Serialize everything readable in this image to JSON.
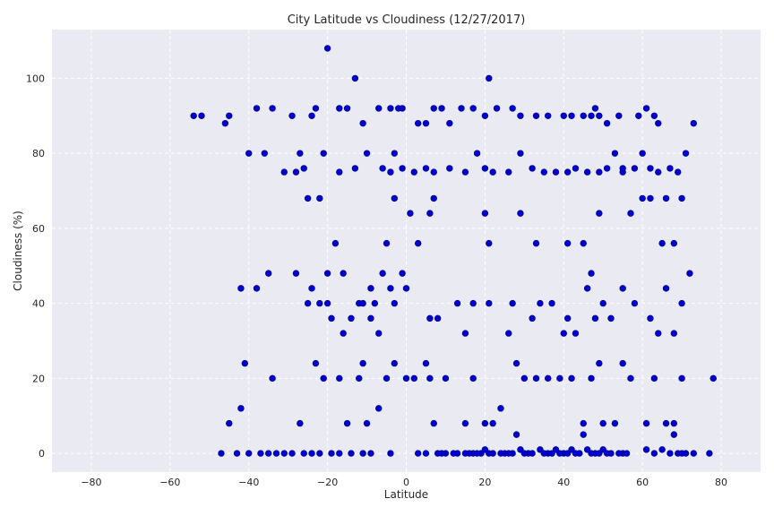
{
  "chart_data": {
    "type": "scatter",
    "title": "City Latitude vs Cloudiness (12/27/2017)",
    "xlabel": "Latitude",
    "ylabel": "Cloudiness (%)",
    "xlim": [
      -90,
      90
    ],
    "ylim": [
      -5,
      113
    ],
    "xticks": [
      -80,
      -60,
      -40,
      -20,
      0,
      20,
      40,
      60,
      80
    ],
    "yticks": [
      0,
      20,
      40,
      60,
      80,
      100
    ],
    "xtick_labels": [
      "−80",
      "−60",
      "−40",
      "−20",
      "0",
      "20",
      "40",
      "60",
      "80"
    ],
    "ytick_labels": [
      "0",
      "20",
      "40",
      "60",
      "80",
      "100"
    ],
    "grid": true,
    "style": {
      "plot_background": "#EAEAF2",
      "grid_color": "#FFFFFF",
      "marker_color": "#0000CD",
      "marker_edge": "#00008B"
    },
    "points": [
      [
        -54,
        90
      ],
      [
        -52,
        90
      ],
      [
        -46,
        88
      ],
      [
        -45,
        90
      ],
      [
        -38,
        92
      ],
      [
        -34,
        92
      ],
      [
        -29,
        90
      ],
      [
        -28,
        75
      ],
      [
        -26,
        76
      ],
      [
        -24,
        90
      ],
      [
        -23,
        92
      ],
      [
        -20,
        108
      ],
      [
        -17,
        92
      ],
      [
        -15,
        92
      ],
      [
        -13,
        100
      ],
      [
        -11,
        88
      ],
      [
        -7,
        92
      ],
      [
        -4,
        92
      ],
      [
        -2,
        92
      ],
      [
        -1,
        92
      ],
      [
        3,
        88
      ],
      [
        5,
        88
      ],
      [
        7,
        92
      ],
      [
        9,
        92
      ],
      [
        11,
        88
      ],
      [
        14,
        92
      ],
      [
        17,
        92
      ],
      [
        20,
        90
      ],
      [
        21,
        100
      ],
      [
        23,
        92
      ],
      [
        27,
        92
      ],
      [
        29,
        90
      ],
      [
        33,
        90
      ],
      [
        36,
        90
      ],
      [
        40,
        90
      ],
      [
        42,
        90
      ],
      [
        45,
        90
      ],
      [
        47,
        90
      ],
      [
        48,
        92
      ],
      [
        49,
        90
      ],
      [
        51,
        88
      ],
      [
        54,
        90
      ],
      [
        59,
        90
      ],
      [
        61,
        92
      ],
      [
        63,
        90
      ],
      [
        64,
        88
      ],
      [
        73,
        88
      ],
      [
        -40,
        80
      ],
      [
        -36,
        80
      ],
      [
        -31,
        75
      ],
      [
        -27,
        80
      ],
      [
        -21,
        80
      ],
      [
        -17,
        75
      ],
      [
        -13,
        76
      ],
      [
        -10,
        80
      ],
      [
        -6,
        76
      ],
      [
        -4,
        75
      ],
      [
        -3,
        80
      ],
      [
        -1,
        76
      ],
      [
        2,
        75
      ],
      [
        5,
        76
      ],
      [
        7,
        75
      ],
      [
        11,
        76
      ],
      [
        15,
        75
      ],
      [
        18,
        80
      ],
      [
        20,
        76
      ],
      [
        22,
        75
      ],
      [
        26,
        75
      ],
      [
        29,
        80
      ],
      [
        32,
        76
      ],
      [
        35,
        75
      ],
      [
        38,
        75
      ],
      [
        41,
        75
      ],
      [
        43,
        76
      ],
      [
        46,
        75
      ],
      [
        49,
        75
      ],
      [
        51,
        76
      ],
      [
        53,
        80
      ],
      [
        55,
        75
      ],
      [
        58,
        76
      ],
      [
        60,
        80
      ],
      [
        62,
        76
      ],
      [
        64,
        75
      ],
      [
        67,
        76
      ],
      [
        69,
        75
      ],
      [
        71,
        80
      ],
      [
        -25,
        68
      ],
      [
        -22,
        68
      ],
      [
        -20,
        48
      ],
      [
        -18,
        56
      ],
      [
        -16,
        48
      ],
      [
        -14,
        36
      ],
      [
        -12,
        40
      ],
      [
        -9,
        44
      ],
      [
        -6,
        48
      ],
      [
        -5,
        56
      ],
      [
        -3,
        68
      ],
      [
        -1,
        48
      ],
      [
        1,
        64
      ],
      [
        3,
        56
      ],
      [
        6,
        64
      ],
      [
        7,
        68
      ],
      [
        20,
        64
      ],
      [
        21,
        56
      ],
      [
        29,
        64
      ],
      [
        33,
        56
      ],
      [
        41,
        56
      ],
      [
        45,
        56
      ],
      [
        47,
        48
      ],
      [
        49,
        64
      ],
      [
        55,
        76
      ],
      [
        57,
        64
      ],
      [
        60,
        68
      ],
      [
        62,
        68
      ],
      [
        65,
        56
      ],
      [
        66,
        68
      ],
      [
        68,
        56
      ],
      [
        70,
        68
      ],
      [
        72,
        48
      ],
      [
        -42,
        44
      ],
      [
        -38,
        44
      ],
      [
        -35,
        48
      ],
      [
        -28,
        48
      ],
      [
        -25,
        40
      ],
      [
        -24,
        44
      ],
      [
        -22,
        40
      ],
      [
        -20,
        40
      ],
      [
        -19,
        36
      ],
      [
        -16,
        32
      ],
      [
        -11,
        40
      ],
      [
        -9,
        36
      ],
      [
        -8,
        40
      ],
      [
        -7,
        32
      ],
      [
        -4,
        44
      ],
      [
        -3,
        40
      ],
      [
        0,
        44
      ],
      [
        6,
        36
      ],
      [
        8,
        36
      ],
      [
        13,
        40
      ],
      [
        15,
        32
      ],
      [
        17,
        40
      ],
      [
        21,
        40
      ],
      [
        26,
        32
      ],
      [
        27,
        40
      ],
      [
        32,
        36
      ],
      [
        34,
        40
      ],
      [
        37,
        40
      ],
      [
        40,
        32
      ],
      [
        41,
        36
      ],
      [
        43,
        32
      ],
      [
        46,
        44
      ],
      [
        48,
        36
      ],
      [
        50,
        40
      ],
      [
        52,
        36
      ],
      [
        55,
        44
      ],
      [
        58,
        40
      ],
      [
        62,
        36
      ],
      [
        64,
        32
      ],
      [
        66,
        44
      ],
      [
        68,
        32
      ],
      [
        70,
        40
      ],
      [
        -41,
        24
      ],
      [
        -42,
        12
      ],
      [
        -34,
        20
      ],
      [
        -27,
        8
      ],
      [
        -23,
        24
      ],
      [
        -21,
        20
      ],
      [
        -17,
        20
      ],
      [
        -15,
        8
      ],
      [
        -12,
        20
      ],
      [
        -11,
        24
      ],
      [
        -10,
        8
      ],
      [
        -7,
        12
      ],
      [
        -5,
        20
      ],
      [
        -3,
        24
      ],
      [
        0,
        20
      ],
      [
        2,
        20
      ],
      [
        5,
        24
      ],
      [
        6,
        20
      ],
      [
        7,
        8
      ],
      [
        10,
        20
      ],
      [
        15,
        8
      ],
      [
        17,
        20
      ],
      [
        20,
        8
      ],
      [
        22,
        8
      ],
      [
        24,
        12
      ],
      [
        28,
        24
      ],
      [
        30,
        20
      ],
      [
        33,
        20
      ],
      [
        36,
        20
      ],
      [
        39,
        20
      ],
      [
        42,
        20
      ],
      [
        45,
        8
      ],
      [
        47,
        20
      ],
      [
        49,
        24
      ],
      [
        50,
        8
      ],
      [
        53,
        8
      ],
      [
        55,
        24
      ],
      [
        57,
        20
      ],
      [
        61,
        8
      ],
      [
        63,
        20
      ],
      [
        66,
        8
      ],
      [
        68,
        8
      ],
      [
        70,
        20
      ],
      [
        78,
        20
      ],
      [
        -47,
        0
      ],
      [
        -45,
        8
      ],
      [
        -43,
        0
      ],
      [
        -40,
        0
      ],
      [
        -37,
        0
      ],
      [
        -35,
        0
      ],
      [
        -33,
        0
      ],
      [
        -31,
        0
      ],
      [
        -29,
        0
      ],
      [
        -26,
        0
      ],
      [
        -24,
        0
      ],
      [
        -22,
        0
      ],
      [
        -19,
        0
      ],
      [
        -17,
        0
      ],
      [
        -14,
        0
      ],
      [
        -11,
        0
      ],
      [
        -9,
        0
      ],
      [
        -4,
        0
      ],
      [
        3,
        0
      ],
      [
        5,
        0
      ],
      [
        8,
        0
      ],
      [
        10,
        0
      ],
      [
        13,
        0
      ],
      [
        15,
        0
      ],
      [
        17,
        0
      ],
      [
        19,
        0
      ],
      [
        20,
        1
      ],
      [
        22,
        0
      ],
      [
        25,
        0
      ],
      [
        27,
        0
      ],
      [
        29,
        1
      ],
      [
        31,
        0
      ],
      [
        34,
        1
      ],
      [
        36,
        0
      ],
      [
        38,
        1
      ],
      [
        40,
        0
      ],
      [
        42,
        1
      ],
      [
        44,
        0
      ],
      [
        46,
        1
      ],
      [
        48,
        0
      ],
      [
        50,
        1
      ],
      [
        52,
        0
      ],
      [
        55,
        0
      ],
      [
        61,
        1
      ],
      [
        65,
        1
      ],
      [
        69,
        0
      ],
      [
        71,
        0
      ],
      [
        73,
        0
      ],
      [
        77,
        0
      ],
      [
        9,
        0
      ],
      [
        12,
        0
      ],
      [
        16,
        0
      ],
      [
        18,
        0
      ],
      [
        21,
        0
      ],
      [
        24,
        0
      ],
      [
        26,
        0
      ],
      [
        28,
        5
      ],
      [
        30,
        0
      ],
      [
        32,
        0
      ],
      [
        35,
        0
      ],
      [
        37,
        0
      ],
      [
        39,
        0
      ],
      [
        41,
        0
      ],
      [
        43,
        0
      ],
      [
        45,
        5
      ],
      [
        47,
        0
      ],
      [
        49,
        0
      ],
      [
        51,
        0
      ],
      [
        54,
        0
      ],
      [
        56,
        0
      ],
      [
        63,
        0
      ],
      [
        67,
        0
      ],
      [
        68,
        5
      ],
      [
        70,
        0
      ]
    ]
  }
}
